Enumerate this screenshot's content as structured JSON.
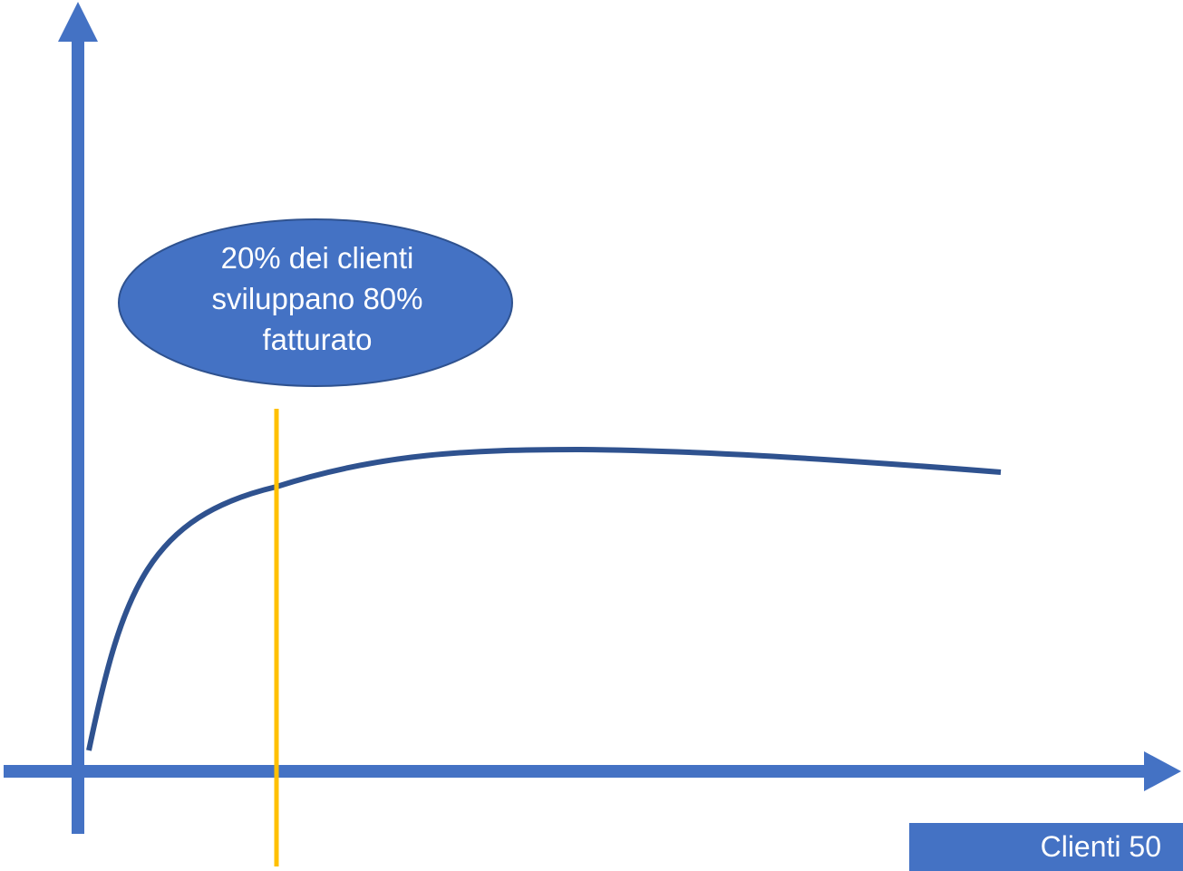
{
  "callout": {
    "lines": [
      "20% dei clienti",
      "sviluppano 80%",
      "fatturato"
    ]
  },
  "x_axis_label": "Clienti 50",
  "colors": {
    "axis": "#4472C4",
    "curve": "#2F528F",
    "threshold_line": "#FFC000",
    "callout_fill": "#4472C4",
    "callout_border": "#2F528F",
    "label_box": "#4472C4"
  }
}
